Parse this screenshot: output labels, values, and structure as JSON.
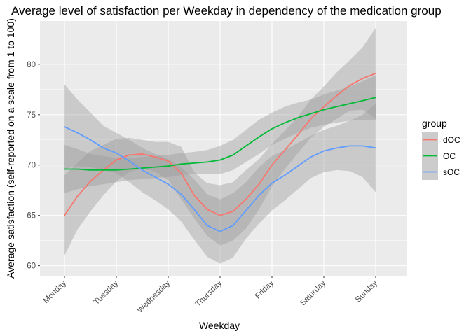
{
  "chart_data": {
    "type": "line",
    "title": "Average level of satisfaction per Weekday in dependency of the medication group",
    "xlabel": "Weekday",
    "ylabel": "Average satisfaction (self-reported on a scale from 1 to 100)",
    "categories": [
      "Monday",
      "Tuesday",
      "Wednesday",
      "Thursday",
      "Friday",
      "Saturday",
      "Sunday"
    ],
    "yticks": [
      60,
      65,
      70,
      75,
      80
    ],
    "ylim": [
      59,
      84.3
    ],
    "grid": true,
    "smoothed": true,
    "confidence_band": true,
    "legend": {
      "title": "group",
      "position": "right"
    },
    "series": [
      {
        "name": "dOC",
        "color": "#F8766D",
        "x": [
          1,
          1.25,
          1.5,
          1.75,
          2,
          2.25,
          2.5,
          2.75,
          3,
          3.25,
          3.5,
          3.75,
          4,
          4.25,
          4.5,
          4.75,
          5,
          5.25,
          5.5,
          5.75,
          6,
          6.25,
          6.5,
          6.75,
          7
        ],
        "values": [
          65.0,
          66.9,
          68.4,
          69.5,
          70.5,
          71.0,
          71.1,
          70.8,
          70.4,
          69.2,
          67.0,
          65.6,
          65.0,
          65.4,
          66.6,
          68.1,
          70.0,
          71.5,
          73.0,
          74.6,
          75.8,
          76.9,
          77.9,
          78.6,
          79.1
        ],
        "ci_low": [
          61.0,
          63.6,
          65.4,
          67.0,
          68.4,
          69.3,
          69.7,
          69.3,
          68.5,
          66.6,
          64.7,
          63.0,
          62.0,
          62.5,
          63.7,
          65.6,
          67.9,
          69.6,
          71.2,
          72.7,
          73.8,
          74.6,
          75.4,
          75.5,
          74.6
        ],
        "ci_high": [
          69.0,
          70.2,
          71.4,
          72.0,
          72.6,
          72.7,
          72.5,
          72.3,
          72.3,
          71.8,
          69.3,
          68.2,
          68.0,
          68.3,
          69.5,
          70.6,
          72.1,
          73.4,
          74.8,
          76.5,
          77.8,
          79.2,
          80.4,
          81.7,
          83.6
        ]
      },
      {
        "name": "OC",
        "color": "#00BA38",
        "x": [
          1,
          1.25,
          1.5,
          1.75,
          2,
          2.25,
          2.5,
          2.75,
          3,
          3.25,
          3.5,
          3.75,
          4,
          4.25,
          4.5,
          4.75,
          5,
          5.25,
          5.5,
          5.75,
          6,
          6.25,
          6.5,
          6.75,
          7
        ],
        "values": [
          69.6,
          69.6,
          69.5,
          69.5,
          69.5,
          69.6,
          69.7,
          69.8,
          69.9,
          70.1,
          70.2,
          70.3,
          70.5,
          71.0,
          71.9,
          72.8,
          73.6,
          74.2,
          74.7,
          75.1,
          75.5,
          75.8,
          76.1,
          76.4,
          76.7
        ],
        "ci_low": [
          67.2,
          67.6,
          67.9,
          68.1,
          68.3,
          68.5,
          68.6,
          68.7,
          68.8,
          69.0,
          69.1,
          69.1,
          69.1,
          69.5,
          70.3,
          71.1,
          72.0,
          72.6,
          73.2,
          73.7,
          74.0,
          74.2,
          74.4,
          74.5,
          74.5
        ],
        "ci_high": [
          72.0,
          71.6,
          71.1,
          70.9,
          70.7,
          70.7,
          70.8,
          70.9,
          71.0,
          71.2,
          71.3,
          71.5,
          71.9,
          72.5,
          73.5,
          74.5,
          75.2,
          75.8,
          76.2,
          76.5,
          77.0,
          77.4,
          77.8,
          78.3,
          78.9
        ]
      },
      {
        "name": "sOC",
        "color": "#619CFF",
        "x": [
          1,
          1.25,
          1.5,
          1.75,
          2,
          2.25,
          2.5,
          2.75,
          3,
          3.25,
          3.5,
          3.75,
          4,
          4.25,
          4.5,
          4.75,
          5,
          5.25,
          5.5,
          5.75,
          6,
          6.25,
          6.5,
          6.75,
          7
        ],
        "values": [
          73.8,
          73.2,
          72.5,
          71.7,
          71.2,
          70.4,
          69.5,
          68.8,
          68.1,
          67.1,
          65.6,
          64.0,
          63.4,
          64.0,
          65.5,
          67.0,
          68.2,
          69.0,
          69.9,
          70.8,
          71.4,
          71.7,
          71.9,
          71.9,
          71.7
        ],
        "ci_low": [
          69.6,
          69.9,
          69.8,
          69.5,
          69.2,
          68.3,
          67.3,
          66.5,
          65.6,
          64.4,
          62.6,
          60.9,
          60.2,
          60.8,
          62.7,
          64.2,
          65.5,
          66.5,
          67.6,
          68.7,
          69.3,
          69.5,
          69.4,
          68.8,
          67.3
        ],
        "ci_high": [
          78.0,
          76.5,
          75.2,
          73.9,
          73.2,
          72.5,
          71.7,
          71.1,
          70.6,
          69.8,
          68.6,
          67.1,
          66.6,
          67.2,
          68.3,
          69.8,
          70.9,
          71.5,
          72.2,
          72.9,
          73.5,
          73.9,
          74.4,
          75.0,
          76.1
        ]
      }
    ]
  }
}
